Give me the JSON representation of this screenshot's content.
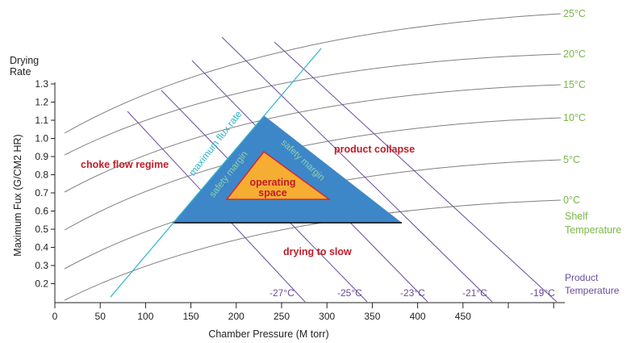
{
  "colors": {
    "shelf": "#7ab648",
    "product": "#6a4c9c",
    "flux_line": "#2bb5c9",
    "design_space": "#3d87c8",
    "operating_fill": "#f5ad32",
    "operating_border": "#d9262c",
    "region_text": "#c01c28",
    "safety_text": "#8fd0ac",
    "grid_curve": "#7f7f7f"
  },
  "axes": {
    "y_title_top": "Drying",
    "y_title_bottom": "Rate",
    "y_title_rotated": "Maximum Fux (G/CM2 HR)",
    "x_title": "Chamber Pressure (M torr)",
    "x_ticks": [
      "0",
      "50",
      "100",
      "150",
      "200",
      "250",
      "300",
      "350",
      "400",
      "450"
    ],
    "y_ticks": [
      "1.3",
      "1.2",
      "1.1",
      "1.0",
      "0.9",
      "0.8",
      "0.7",
      "0.6",
      "0.5",
      "0.4",
      "0.3",
      "0.2"
    ]
  },
  "shelf_temperature": {
    "title_line1": "Shelf",
    "title_line2": "Temperature",
    "labels": [
      "25°C",
      "20°C",
      "15°C",
      "10°C",
      "5°C",
      "0°C"
    ]
  },
  "product_temperature": {
    "title_line1": "Product",
    "title_line2": "Temperature",
    "labels": [
      "-27°C",
      "-25°C",
      "-23°C",
      "-21°C",
      "-19°C"
    ]
  },
  "regions": {
    "choke_flow": "choke flow regime",
    "product_collapse": "product collapse",
    "drying_slow": "drying to slow",
    "operating_line1": "operating",
    "operating_line2": "space",
    "safety_left": "safety margin",
    "safety_right": "safety margin",
    "max_flux": "maximum flux rate"
  }
}
